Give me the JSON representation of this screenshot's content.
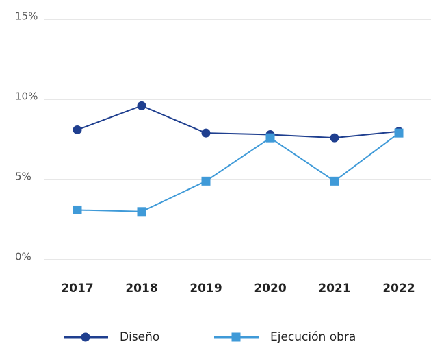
{
  "chart_data": {
    "type": "line",
    "categories": [
      "2017",
      "2018",
      "2019",
      "2020",
      "2021",
      "2022"
    ],
    "series": [
      {
        "name": "Diseño",
        "color": "#1f3f8f",
        "marker": "circle",
        "values": [
          8.1,
          9.6,
          7.9,
          7.8,
          7.6,
          8.0
        ]
      },
      {
        "name": "Ejecución obra",
        "color": "#3f9ad8",
        "marker": "square",
        "values": [
          3.1,
          3.0,
          4.9,
          7.6,
          4.9,
          7.9
        ]
      }
    ],
    "ylim": [
      0,
      15
    ],
    "yticks": [
      {
        "value": 0,
        "label": "0%"
      },
      {
        "value": 5,
        "label": "5%"
      },
      {
        "value": 10,
        "label": "10%"
      },
      {
        "value": 15,
        "label": "15%"
      }
    ],
    "grid": true,
    "legend": "bottom"
  }
}
